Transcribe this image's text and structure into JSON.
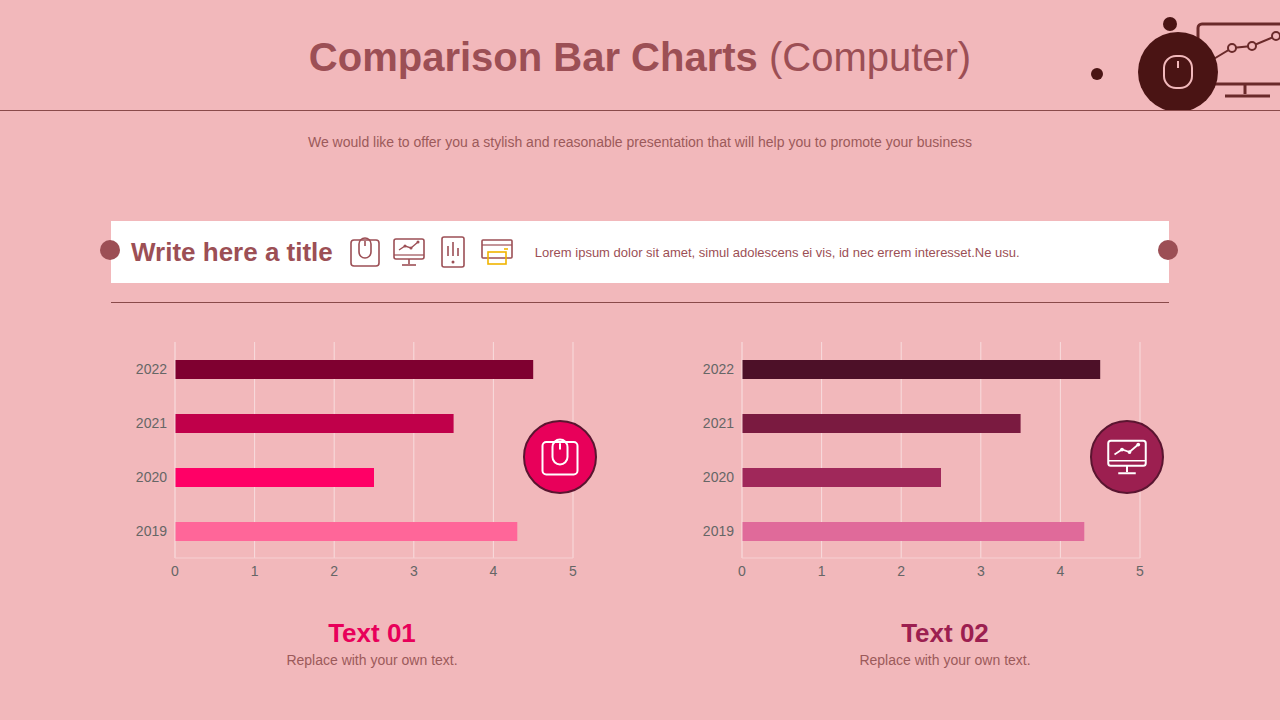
{
  "title": "Comparison Bar Charts",
  "title_note": "(Computer)",
  "subtitle": "We would like to offer you a stylish and reasonable presentation that will help you to promote your business",
  "banner": {
    "title": "Write here a title",
    "text": "Lorem ipsum dolor sit amet, simul adolescens ei vis, id nec errem interesset.Ne usu."
  },
  "chart_data": [
    {
      "type": "bar",
      "orientation": "horizontal",
      "title": "Text 01",
      "subtitle": "Replace with your own text.",
      "color": "#e8005a",
      "categories": [
        "2022",
        "2021",
        "2020",
        "2019"
      ],
      "values": [
        4.5,
        3.5,
        2.5,
        4.3
      ],
      "colors": [
        "#7f0030",
        "#c0004a",
        "#ff0066",
        "#ff6699"
      ],
      "xlim": [
        0,
        5
      ],
      "xticks": [
        0,
        1,
        2,
        3,
        4,
        5
      ],
      "grid": true
    },
    {
      "type": "bar",
      "orientation": "horizontal",
      "title": "Text 02",
      "subtitle": "Replace with your own text.",
      "color": "#9c1f50",
      "categories": [
        "2022",
        "2021",
        "2020",
        "2019"
      ],
      "values": [
        4.5,
        3.5,
        2.5,
        4.3
      ],
      "colors": [
        "#4d1028",
        "#7a1a40",
        "#a0285a",
        "#e06a9a"
      ],
      "xlim": [
        0,
        5
      ],
      "xticks": [
        0,
        1,
        2,
        3,
        4,
        5
      ],
      "grid": true
    }
  ]
}
